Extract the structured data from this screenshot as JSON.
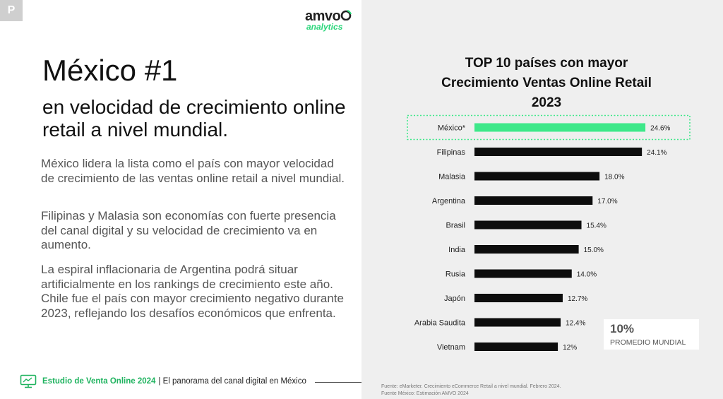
{
  "badge": "P",
  "logo": {
    "line1": "amvo",
    "line2": "analytics"
  },
  "left": {
    "title": "México #1",
    "subtitle": "en velocidad de crecimiento online retail a nivel mundial.",
    "paragraphs": [
      "México lidera la lista como el país con mayor velocidad de crecimiento de las ventas online retail a nivel mundial.",
      "Filipinas y Malasia son economías con fuerte presencia del canal digital y su velocidad de crecimiento va en aumento.",
      "La espiral inflacionaria de Argentina podrá situar artificialmente en los rankings de crecimiento este año. Chile fue el país con mayor crecimiento negativo durante 2023, reflejando los desafíos económicos que enfrenta."
    ]
  },
  "footer": {
    "study": "Estudio de Venta Online 2024",
    "rest": "| El panorama del canal digital en México"
  },
  "average": {
    "value": "10%",
    "label": "PROMEDIO MUNDIAL"
  },
  "source": {
    "line1": "Fuente: eMarketer. Crecimiento eCommerce Retail a nivel mundial. Febrero 2024.",
    "line2": "Fuente México: Estimación AMVO 2024"
  },
  "colors": {
    "highlight": "#3ee88a",
    "bar": "#0d0d0d",
    "accent": "#1fb35f"
  },
  "chart_data": {
    "type": "bar",
    "orientation": "horizontal",
    "title_lines": [
      "TOP 10 países con mayor",
      "Crecimiento Ventas Online Retail",
      "2023"
    ],
    "categories": [
      "México*",
      "Filipinas",
      "Malasia",
      "Argentina",
      "Brasil",
      "India",
      "Rusia",
      "Japón",
      "Arabia Saudita",
      "Vietnam"
    ],
    "values": [
      24.6,
      24.1,
      18.0,
      17.0,
      15.4,
      15.0,
      14.0,
      12.7,
      12.4,
      12.0
    ],
    "labels": [
      "24.6%",
      "24.1%",
      "18.0%",
      "17.0%",
      "15.4%",
      "15.0%",
      "14.0%",
      "12.7%",
      "12.4%",
      "12%"
    ],
    "highlight_index": 0,
    "xlim": [
      0,
      25
    ]
  }
}
